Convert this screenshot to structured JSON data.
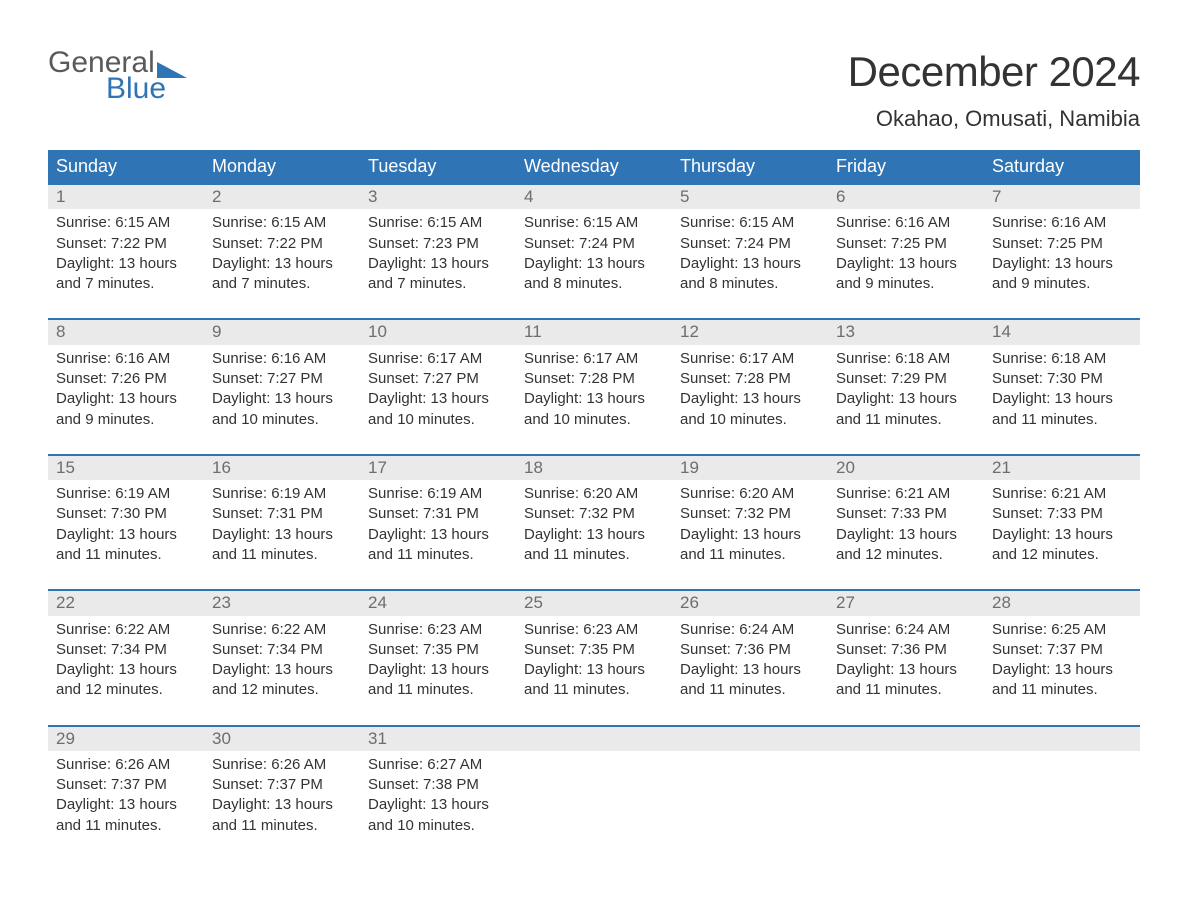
{
  "logo": {
    "top": "General",
    "bottom": "Blue",
    "icon_color": "#2f74b5"
  },
  "title": "December 2024",
  "location": "Okahao, Omusati, Namibia",
  "colors": {
    "header_bg": "#2f74b5",
    "header_text": "#ffffff",
    "daynum_bg": "#eaeaea",
    "daynum_text": "#6d6d6d",
    "row_border": "#2f74b5",
    "body_text": "#333333",
    "page_bg": "#ffffff"
  },
  "weekdays": [
    "Sunday",
    "Monday",
    "Tuesday",
    "Wednesday",
    "Thursday",
    "Friday",
    "Saturday"
  ],
  "weeks": [
    [
      {
        "n": "1",
        "sr": "Sunrise: 6:15 AM",
        "ss": "Sunset: 7:22 PM",
        "d1": "Daylight: 13 hours",
        "d2": "and 7 minutes."
      },
      {
        "n": "2",
        "sr": "Sunrise: 6:15 AM",
        "ss": "Sunset: 7:22 PM",
        "d1": "Daylight: 13 hours",
        "d2": "and 7 minutes."
      },
      {
        "n": "3",
        "sr": "Sunrise: 6:15 AM",
        "ss": "Sunset: 7:23 PM",
        "d1": "Daylight: 13 hours",
        "d2": "and 7 minutes."
      },
      {
        "n": "4",
        "sr": "Sunrise: 6:15 AM",
        "ss": "Sunset: 7:24 PM",
        "d1": "Daylight: 13 hours",
        "d2": "and 8 minutes."
      },
      {
        "n": "5",
        "sr": "Sunrise: 6:15 AM",
        "ss": "Sunset: 7:24 PM",
        "d1": "Daylight: 13 hours",
        "d2": "and 8 minutes."
      },
      {
        "n": "6",
        "sr": "Sunrise: 6:16 AM",
        "ss": "Sunset: 7:25 PM",
        "d1": "Daylight: 13 hours",
        "d2": "and 9 minutes."
      },
      {
        "n": "7",
        "sr": "Sunrise: 6:16 AM",
        "ss": "Sunset: 7:25 PM",
        "d1": "Daylight: 13 hours",
        "d2": "and 9 minutes."
      }
    ],
    [
      {
        "n": "8",
        "sr": "Sunrise: 6:16 AM",
        "ss": "Sunset: 7:26 PM",
        "d1": "Daylight: 13 hours",
        "d2": "and 9 minutes."
      },
      {
        "n": "9",
        "sr": "Sunrise: 6:16 AM",
        "ss": "Sunset: 7:27 PM",
        "d1": "Daylight: 13 hours",
        "d2": "and 10 minutes."
      },
      {
        "n": "10",
        "sr": "Sunrise: 6:17 AM",
        "ss": "Sunset: 7:27 PM",
        "d1": "Daylight: 13 hours",
        "d2": "and 10 minutes."
      },
      {
        "n": "11",
        "sr": "Sunrise: 6:17 AM",
        "ss": "Sunset: 7:28 PM",
        "d1": "Daylight: 13 hours",
        "d2": "and 10 minutes."
      },
      {
        "n": "12",
        "sr": "Sunrise: 6:17 AM",
        "ss": "Sunset: 7:28 PM",
        "d1": "Daylight: 13 hours",
        "d2": "and 10 minutes."
      },
      {
        "n": "13",
        "sr": "Sunrise: 6:18 AM",
        "ss": "Sunset: 7:29 PM",
        "d1": "Daylight: 13 hours",
        "d2": "and 11 minutes."
      },
      {
        "n": "14",
        "sr": "Sunrise: 6:18 AM",
        "ss": "Sunset: 7:30 PM",
        "d1": "Daylight: 13 hours",
        "d2": "and 11 minutes."
      }
    ],
    [
      {
        "n": "15",
        "sr": "Sunrise: 6:19 AM",
        "ss": "Sunset: 7:30 PM",
        "d1": "Daylight: 13 hours",
        "d2": "and 11 minutes."
      },
      {
        "n": "16",
        "sr": "Sunrise: 6:19 AM",
        "ss": "Sunset: 7:31 PM",
        "d1": "Daylight: 13 hours",
        "d2": "and 11 minutes."
      },
      {
        "n": "17",
        "sr": "Sunrise: 6:19 AM",
        "ss": "Sunset: 7:31 PM",
        "d1": "Daylight: 13 hours",
        "d2": "and 11 minutes."
      },
      {
        "n": "18",
        "sr": "Sunrise: 6:20 AM",
        "ss": "Sunset: 7:32 PM",
        "d1": "Daylight: 13 hours",
        "d2": "and 11 minutes."
      },
      {
        "n": "19",
        "sr": "Sunrise: 6:20 AM",
        "ss": "Sunset: 7:32 PM",
        "d1": "Daylight: 13 hours",
        "d2": "and 11 minutes."
      },
      {
        "n": "20",
        "sr": "Sunrise: 6:21 AM",
        "ss": "Sunset: 7:33 PM",
        "d1": "Daylight: 13 hours",
        "d2": "and 12 minutes."
      },
      {
        "n": "21",
        "sr": "Sunrise: 6:21 AM",
        "ss": "Sunset: 7:33 PM",
        "d1": "Daylight: 13 hours",
        "d2": "and 12 minutes."
      }
    ],
    [
      {
        "n": "22",
        "sr": "Sunrise: 6:22 AM",
        "ss": "Sunset: 7:34 PM",
        "d1": "Daylight: 13 hours",
        "d2": "and 12 minutes."
      },
      {
        "n": "23",
        "sr": "Sunrise: 6:22 AM",
        "ss": "Sunset: 7:34 PM",
        "d1": "Daylight: 13 hours",
        "d2": "and 12 minutes."
      },
      {
        "n": "24",
        "sr": "Sunrise: 6:23 AM",
        "ss": "Sunset: 7:35 PM",
        "d1": "Daylight: 13 hours",
        "d2": "and 11 minutes."
      },
      {
        "n": "25",
        "sr": "Sunrise: 6:23 AM",
        "ss": "Sunset: 7:35 PM",
        "d1": "Daylight: 13 hours",
        "d2": "and 11 minutes."
      },
      {
        "n": "26",
        "sr": "Sunrise: 6:24 AM",
        "ss": "Sunset: 7:36 PM",
        "d1": "Daylight: 13 hours",
        "d2": "and 11 minutes."
      },
      {
        "n": "27",
        "sr": "Sunrise: 6:24 AM",
        "ss": "Sunset: 7:36 PM",
        "d1": "Daylight: 13 hours",
        "d2": "and 11 minutes."
      },
      {
        "n": "28",
        "sr": "Sunrise: 6:25 AM",
        "ss": "Sunset: 7:37 PM",
        "d1": "Daylight: 13 hours",
        "d2": "and 11 minutes."
      }
    ],
    [
      {
        "n": "29",
        "sr": "Sunrise: 6:26 AM",
        "ss": "Sunset: 7:37 PM",
        "d1": "Daylight: 13 hours",
        "d2": "and 11 minutes."
      },
      {
        "n": "30",
        "sr": "Sunrise: 6:26 AM",
        "ss": "Sunset: 7:37 PM",
        "d1": "Daylight: 13 hours",
        "d2": "and 11 minutes."
      },
      {
        "n": "31",
        "sr": "Sunrise: 6:27 AM",
        "ss": "Sunset: 7:38 PM",
        "d1": "Daylight: 13 hours",
        "d2": "and 10 minutes."
      },
      null,
      null,
      null,
      null
    ]
  ]
}
